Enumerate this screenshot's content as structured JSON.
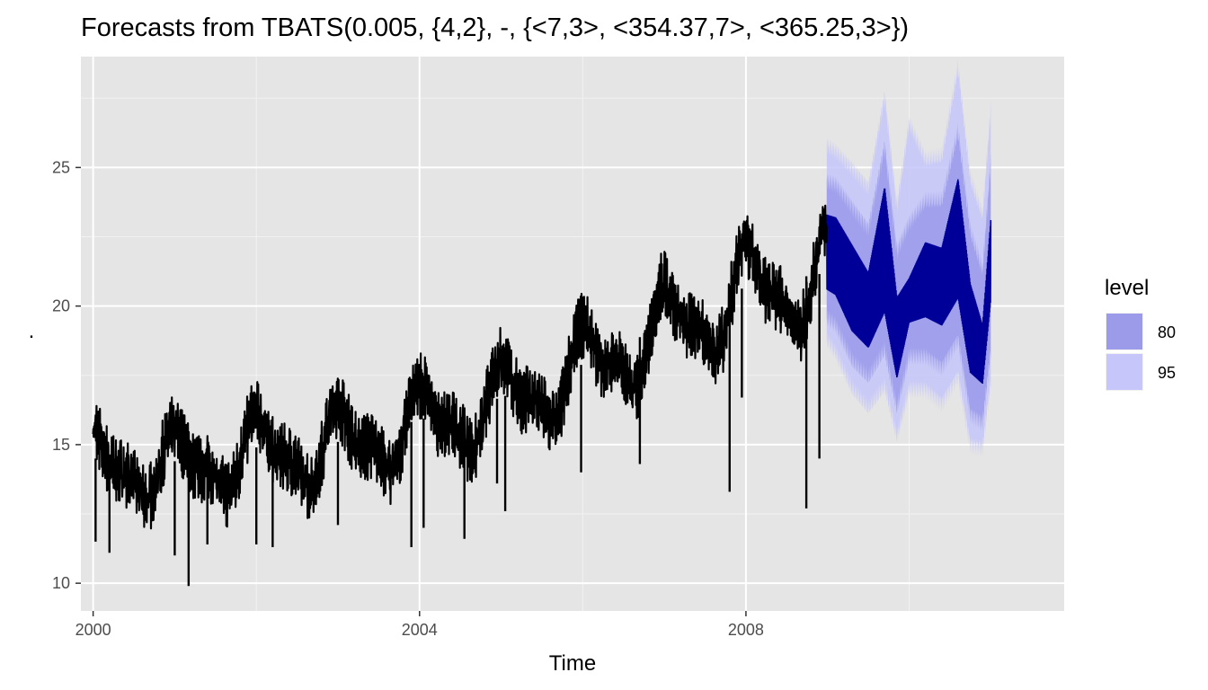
{
  "chart_data": {
    "type": "line",
    "title": "Forecasts from TBATS(0.005, {4,2}, -, {<7,3>, <354.37,7>, <365.25,3>})",
    "xlabel": "Time",
    "ylabel": ".",
    "xlim": [
      1999.85,
      2011.9
    ],
    "ylim": [
      9.0,
      29.0
    ],
    "x_ticks": [
      2000,
      2004,
      2008
    ],
    "x_tick_labels": [
      "2000",
      "2004",
      "2008"
    ],
    "y_ticks": [
      10,
      15,
      20,
      25
    ],
    "y_tick_labels": [
      "10",
      "15",
      "20",
      "25"
    ],
    "grid": true,
    "panel_background": "#e5e5e5",
    "colors": {
      "observed": "#000000",
      "forecast": "#000099",
      "band80": "#9b9bea",
      "band95": "#c6c6fa"
    },
    "legend": {
      "title": "level",
      "placement": "right",
      "entries": [
        {
          "label": "80",
          "color": "#9b9bea"
        },
        {
          "label": "95",
          "color": "#c6c6fa"
        }
      ]
    },
    "observed_trend": [
      [
        2000.0,
        14.2
      ],
      [
        2001.0,
        14.1
      ],
      [
        2002.0,
        14.6
      ],
      [
        2003.0,
        14.8
      ],
      [
        2004.0,
        15.6
      ],
      [
        2005.0,
        16.4
      ],
      [
        2006.0,
        17.6
      ],
      [
        2007.0,
        19.0
      ],
      [
        2008.0,
        20.4
      ],
      [
        2008.99,
        20.9
      ]
    ],
    "seasonal_peak_amplitude": 1.6,
    "dips": [
      [
        2000.03,
        11.5
      ],
      [
        2000.2,
        11.1
      ],
      [
        2001.0,
        11.0
      ],
      [
        2001.17,
        9.9
      ],
      [
        2001.4,
        11.4
      ],
      [
        2002.0,
        11.4
      ],
      [
        2002.2,
        11.3
      ],
      [
        2003.0,
        12.1
      ],
      [
        2003.9,
        11.3
      ],
      [
        2004.05,
        12.0
      ],
      [
        2004.55,
        11.6
      ],
      [
        2004.95,
        13.6
      ],
      [
        2005.05,
        12.6
      ],
      [
        2005.98,
        14.0
      ],
      [
        2006.7,
        14.3
      ],
      [
        2007.8,
        13.3
      ],
      [
        2007.95,
        16.7
      ],
      [
        2008.74,
        12.7
      ],
      [
        2008.9,
        14.5
      ]
    ],
    "forecast": {
      "x": [
        2008.99,
        2009.1,
        2009.3,
        2009.5,
        2009.7,
        2009.85,
        2010.0,
        2010.2,
        2010.4,
        2010.6,
        2010.75,
        2010.9,
        2011.0
      ],
      "point_upper": [
        23.3,
        23.2,
        22.2,
        21.2,
        24.3,
        20.3,
        21.0,
        22.3,
        22.1,
        24.6,
        20.8,
        19.3,
        23.1
      ],
      "point_lower": [
        20.6,
        20.4,
        19.1,
        18.5,
        19.8,
        17.4,
        19.4,
        19.6,
        19.3,
        20.3,
        17.6,
        17.2,
        20.2
      ],
      "lo80": [
        19.6,
        19.3,
        18.0,
        17.4,
        18.4,
        16.3,
        18.2,
        18.2,
        17.8,
        18.8,
        16.1,
        15.8,
        18.4
      ],
      "hi80": [
        24.5,
        24.4,
        23.6,
        22.8,
        25.8,
        22.0,
        23.0,
        23.8,
        23.8,
        26.3,
        22.7,
        21.3,
        25.2
      ],
      "lo95": [
        18.8,
        18.3,
        17.0,
        16.3,
        17.1,
        15.3,
        17.0,
        17.0,
        16.5,
        17.5,
        15.0,
        14.9,
        17.3
      ],
      "hi95": [
        25.8,
        25.6,
        25.0,
        24.3,
        27.6,
        23.6,
        26.6,
        25.3,
        25.4,
        28.6,
        24.6,
        23.3,
        27.1
      ]
    }
  }
}
